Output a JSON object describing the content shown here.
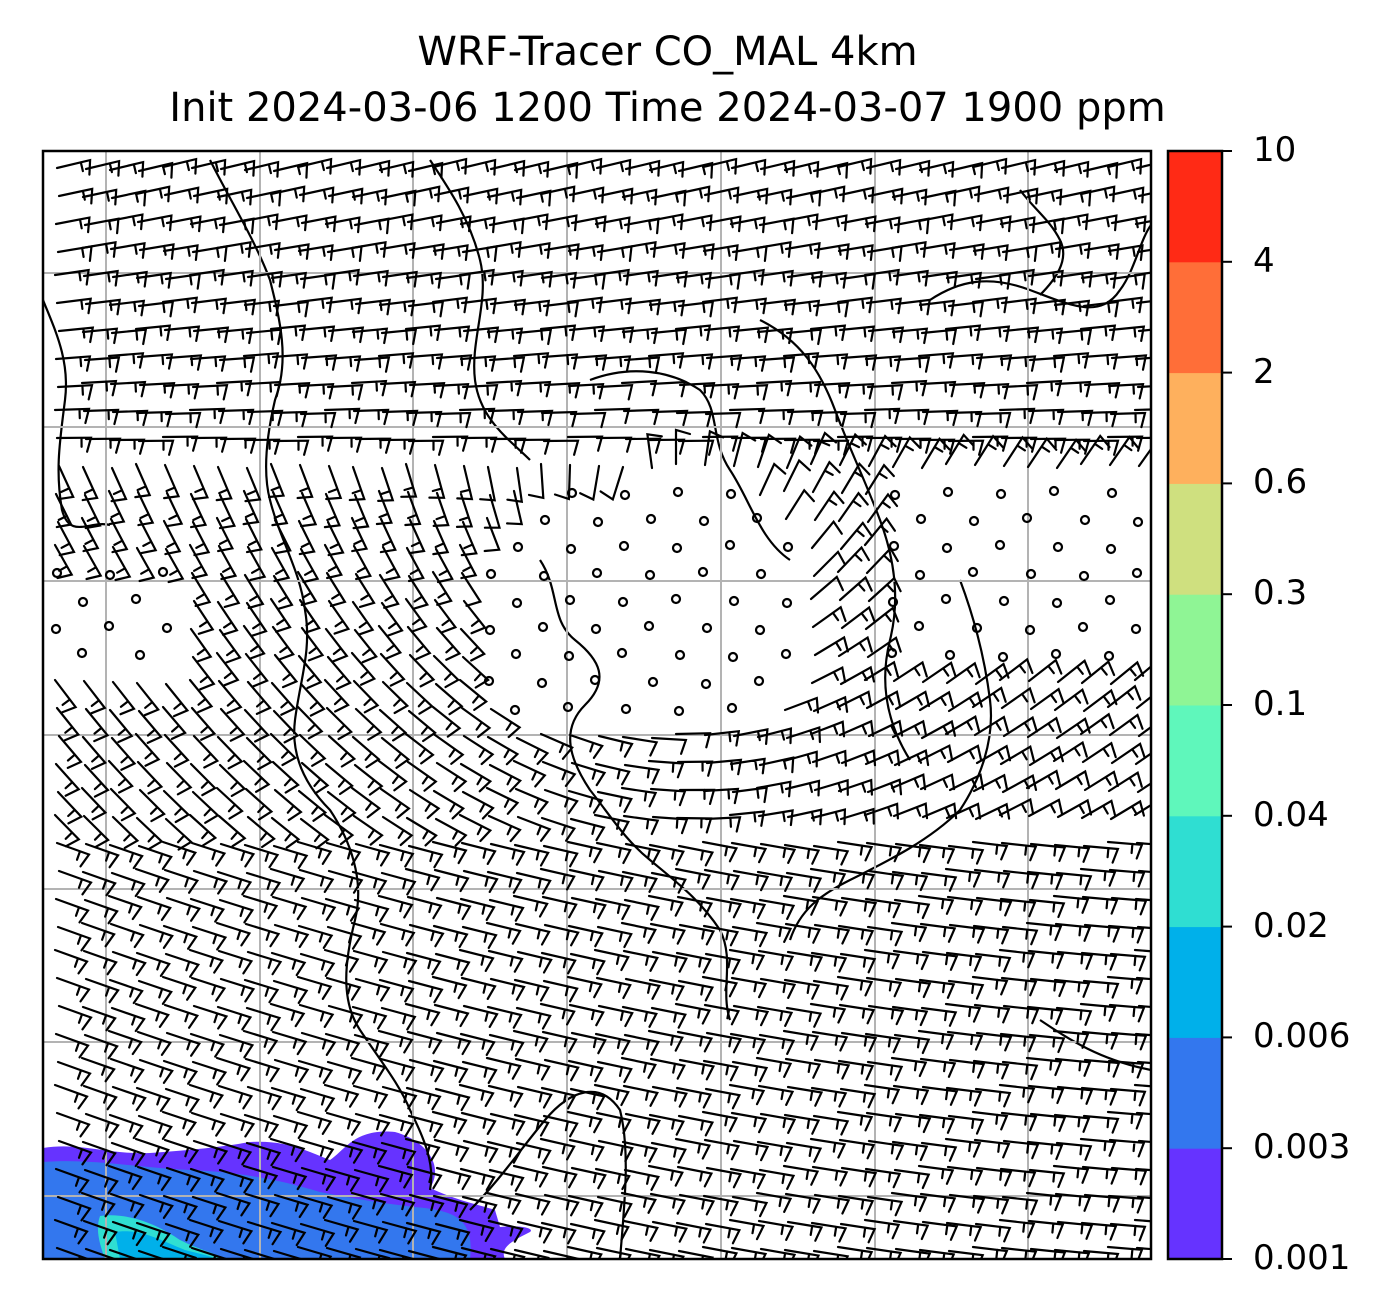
{
  "title": {
    "line1": "WRF-Tracer CO_MAL 4km",
    "line2": "Init 2024-03-06 1200 Time 2024-03-07 1900 ppm"
  },
  "colorbar": {
    "levels": [
      "0.001",
      "0.003",
      "0.006",
      "0.02",
      "0.04",
      "0.1",
      "0.3",
      "0.6",
      "2",
      "4",
      "10"
    ],
    "colors": [
      "#6633ff",
      "#3377ee",
      "#00b0ea",
      "#2fded2",
      "#5ff7bb",
      "#8ff595",
      "#cfe07f",
      "#feb05d",
      "#ff6e38",
      "#ff2a15"
    ]
  },
  "map": {
    "field": "CO_MAL tracer concentration",
    "units": "ppm",
    "features": [
      "coastlines",
      "lat-lon gridlines",
      "wind barbs"
    ]
  }
}
